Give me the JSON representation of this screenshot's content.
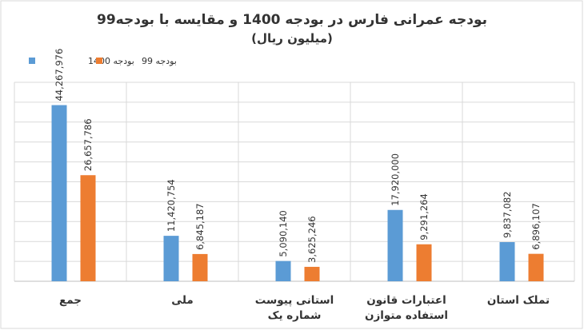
{
  "chart_data": {
    "type": "bar",
    "title": "بودجه عمرانی فارس در بودجه 1400 و مقایسه با بودجه99",
    "subtitle": "(میلیون ریال)",
    "categories": [
      [
        "تملک استان"
      ],
      [
        "اعتبارات قانون",
        "استفاده متوازن"
      ],
      [
        "استانی پیوست",
        "شماره یک"
      ],
      [
        "ملی"
      ],
      [
        "جمع"
      ]
    ],
    "series": [
      {
        "name": "بودجه 1400",
        "color": "#5B9BD5",
        "values": [
          9837082,
          17920000,
          5090140,
          11420754,
          44267976
        ],
        "labels": [
          "9,837,082",
          "17,920,000",
          "5,090,140",
          "11,420,754",
          "44,267,976"
        ]
      },
      {
        "name": "بودجه 99",
        "color": "#ED7D31",
        "values": [
          6896107,
          9291264,
          3625246,
          6845187,
          26657786
        ],
        "labels": [
          "6,896,107",
          "9,291,264",
          "3,625,246",
          "6,845,187",
          "26,657,786"
        ]
      }
    ],
    "ylim": [
      0,
      50000000
    ],
    "grid": true,
    "legend_position": "top-left"
  }
}
